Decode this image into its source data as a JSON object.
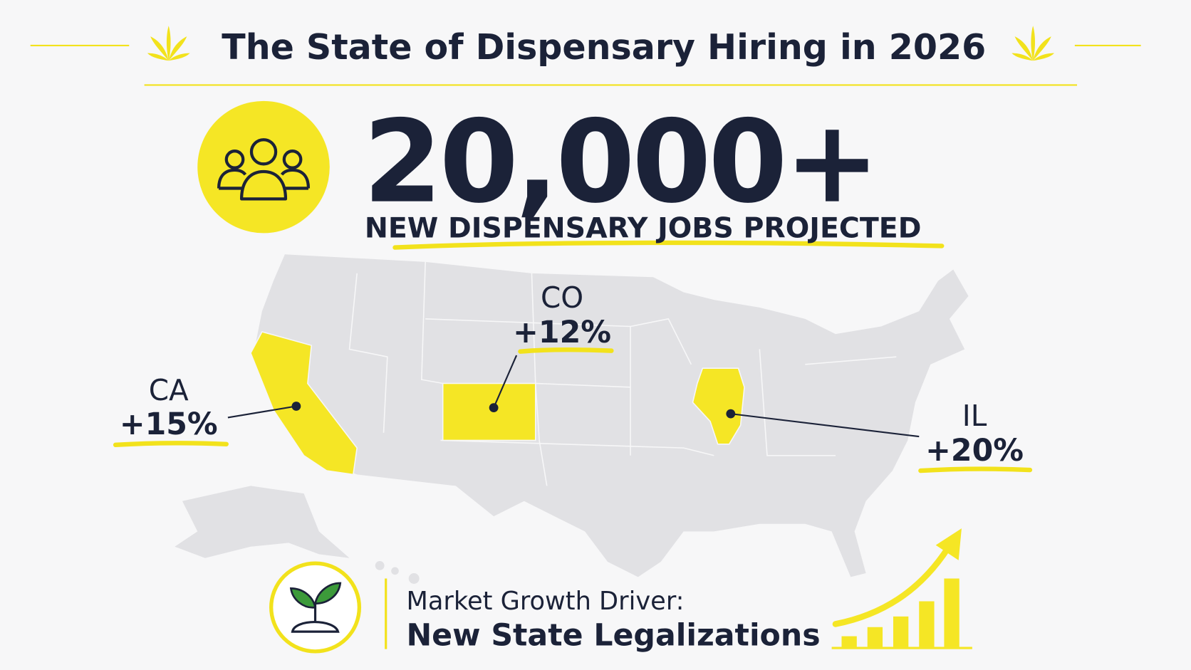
{
  "header": {
    "title": "The State of Dispensary Hiring in 2026"
  },
  "headline": {
    "value": "20,000+",
    "caption": "NEW DISPENSARY JOBS PROJECTED"
  },
  "map": {
    "states": [
      {
        "code": "CA",
        "change": "+15%"
      },
      {
        "code": "CO",
        "change": "+12%"
      },
      {
        "code": "IL",
        "change": "+20%"
      }
    ]
  },
  "footer": {
    "label": "Market Growth Driver:",
    "value": "New State Legalizations"
  }
}
